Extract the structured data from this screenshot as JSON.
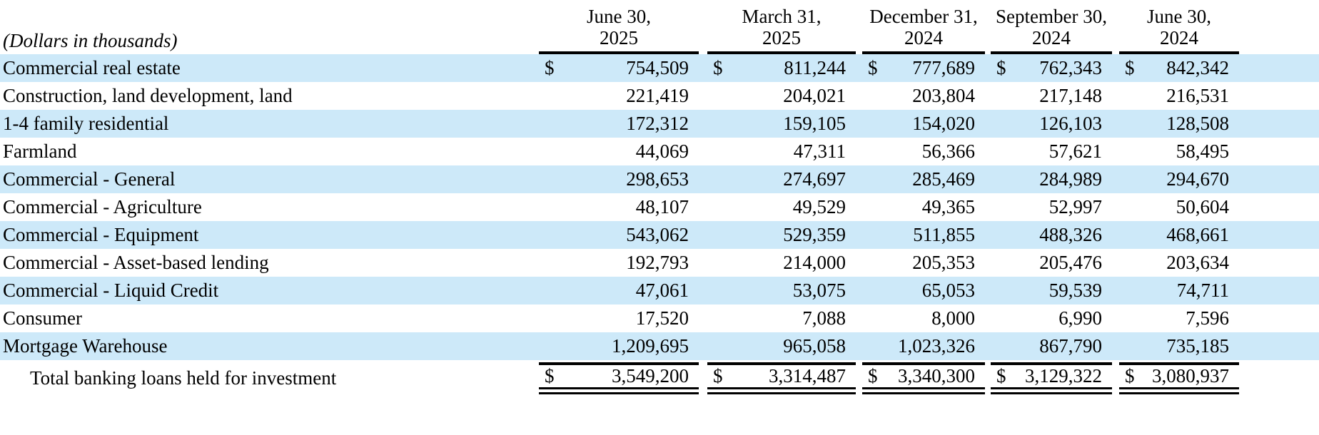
{
  "table": {
    "unit_label": "(Dollars in thousands)",
    "currency_symbol": "$",
    "columns": [
      {
        "line1": "June 30,",
        "line2": "2025"
      },
      {
        "line1": "March 31,",
        "line2": "2025"
      },
      {
        "line1": "December 31,",
        "line2": "2024"
      },
      {
        "line1": "September 30,",
        "line2": "2024"
      },
      {
        "line1": "June 30,",
        "line2": "2024"
      }
    ],
    "rows": [
      {
        "label": "Commercial real estate",
        "dollar_sign": true,
        "values": [
          "754,509",
          "811,244",
          "777,689",
          "762,343",
          "842,342"
        ]
      },
      {
        "label": "Construction, land development, land",
        "dollar_sign": false,
        "values": [
          "221,419",
          "204,021",
          "203,804",
          "217,148",
          "216,531"
        ]
      },
      {
        "label": "1-4 family residential",
        "dollar_sign": false,
        "values": [
          "172,312",
          "159,105",
          "154,020",
          "126,103",
          "128,508"
        ]
      },
      {
        "label": "Farmland",
        "dollar_sign": false,
        "values": [
          "44,069",
          "47,311",
          "56,366",
          "57,621",
          "58,495"
        ]
      },
      {
        "label": "Commercial - General",
        "dollar_sign": false,
        "values": [
          "298,653",
          "274,697",
          "285,469",
          "284,989",
          "294,670"
        ]
      },
      {
        "label": "Commercial - Agriculture",
        "dollar_sign": false,
        "values": [
          "48,107",
          "49,529",
          "49,365",
          "52,997",
          "50,604"
        ]
      },
      {
        "label": "Commercial - Equipment",
        "dollar_sign": false,
        "values": [
          "543,062",
          "529,359",
          "511,855",
          "488,326",
          "468,661"
        ]
      },
      {
        "label": "Commercial - Asset-based lending",
        "dollar_sign": false,
        "values": [
          "192,793",
          "214,000",
          "205,353",
          "205,476",
          "203,634"
        ]
      },
      {
        "label": "Commercial - Liquid Credit",
        "dollar_sign": false,
        "values": [
          "47,061",
          "53,075",
          "65,053",
          "59,539",
          "74,711"
        ]
      },
      {
        "label": "Consumer",
        "dollar_sign": false,
        "values": [
          "17,520",
          "7,088",
          "8,000",
          "6,990",
          "7,596"
        ]
      },
      {
        "label": "Mortgage Warehouse",
        "dollar_sign": false,
        "values": [
          "1,209,695",
          "965,058",
          "1,023,326",
          "867,790",
          "735,185"
        ]
      }
    ],
    "total_row": {
      "label": "Total banking loans held for investment",
      "dollar_sign": true,
      "values": [
        "3,549,200",
        "3,314,487",
        "3,340,300",
        "3,129,322",
        "3,080,937"
      ]
    }
  },
  "colors": {
    "stripe_blue": "#cde9f9",
    "rule_black": "#000000",
    "text": "#000000"
  }
}
